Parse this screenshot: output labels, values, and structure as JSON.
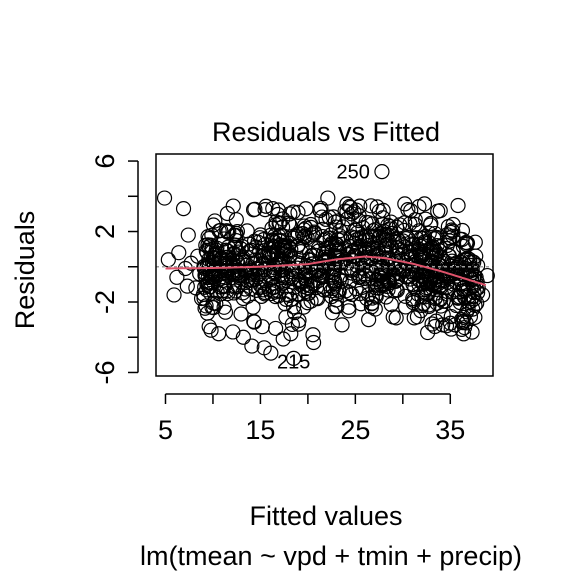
{
  "chart_data": {
    "type": "scatter",
    "title": "Residuals vs Fitted",
    "xlabel": "Fitted values",
    "ylabel": "Residuals",
    "subtitle": "lm(tmean ~ vpd + tmin + precip)",
    "xlim": [
      4,
      39.5
    ],
    "ylim": [
      -6.2,
      6.4
    ],
    "x_ticks": [
      5,
      15,
      25,
      35
    ],
    "x_tick_labels": [
      "5",
      "15",
      "25",
      "35"
    ],
    "y_ticks": [
      -6,
      -4,
      -2,
      0,
      2,
      4,
      6
    ],
    "y_tick_labels": [
      "-6",
      "",
      "-2",
      "",
      "2",
      "",
      "6"
    ],
    "reference_line_y": 0,
    "colors": {
      "points": "#000000",
      "smoother": "#DF536B",
      "reference": "#9E9E9E"
    },
    "labeled_points": [
      {
        "label": "250",
        "x": 27.8,
        "y": 5.4
      },
      {
        "label": "215",
        "x": 18.5,
        "y": -5.2
      }
    ],
    "smoother": {
      "x": [
        5,
        10,
        15,
        20,
        23,
        26,
        28,
        31,
        34,
        37,
        38.8
      ],
      "y": [
        -0.1,
        -0.07,
        0.0,
        0.15,
        0.42,
        0.58,
        0.5,
        0.18,
        -0.25,
        -0.75,
        -1.05
      ]
    },
    "series": [
      {
        "values_x": [
          4.9,
          5.3,
          5.9,
          6.4,
          6.9,
          7.4,
          7.7,
          8.2,
          8.6,
          9.3,
          9.6,
          10.2,
          6.2,
          7.3,
          8.8,
          9.9,
          7.1,
          8.4,
          9.8,
          10.6,
          9.6,
          10.3,
          12.1,
          13.2,
          14.3,
          14.1,
          15.2,
          15.4,
          16.1,
          16.6,
          16.3,
          17.1,
          17.6,
          18.2,
          18.6,
          17.4,
          18.1,
          19.2,
          20.3,
          21.3,
          22.1,
          23.2,
          24.3,
          22.6,
          23.6,
          25.4,
          26.2,
          27.1,
          25.6,
          26.4,
          27.3,
          28.1,
          29.3,
          30.2,
          31.3,
          32.4,
          33.3,
          34.2,
          35.3,
          35.6,
          36.2,
          36.9,
          37.6,
          38.4,
          38.9,
          32.3,
          33.6,
          29.3,
          28.6,
          31.2,
          34.2,
          35.5,
          21.2,
          23.3,
          24.3,
          19.6,
          20.6,
          27.8,
          18.5
        ],
        "values_y": [
          3.9,
          0.4,
          -1.6,
          0.8,
          3.3,
          1.8,
          0.2,
          -1.2,
          -0.4,
          0.9,
          1.6,
          2.6,
          -0.6,
          -1.1,
          -1.8,
          -2.3,
          -0.1,
          0.6,
          -3.6,
          -3.8,
          -3.4,
          -2.1,
          -3.7,
          -4.0,
          -3.1,
          -4.5,
          -3.4,
          -4.6,
          -4.9,
          -3.5,
          3.3,
          1.5,
          -2.1,
          -3.8,
          -2.6,
          -4.1,
          3.0,
          -1.0,
          2.4,
          3.2,
          3.9,
          2.6,
          -2.5,
          -0.6,
          -3.3,
          2.9,
          -1.8,
          -2.4,
          -2.1,
          -3.0,
          3.4,
          1.2,
          -2.9,
          2.5,
          2.4,
          2.7,
          0.5,
          -3.3,
          2.4,
          -0.9,
          -3.0,
          -1.7,
          -2.2,
          -1.6,
          -0.5,
          1.7,
          1.2,
          -1.3,
          -0.8,
          -2.9,
          -0.6,
          -3.3,
          -0.5,
          -1.4,
          -2.3,
          2.1,
          -4.3,
          5.4,
          -5.2
        ]
      }
    ]
  }
}
